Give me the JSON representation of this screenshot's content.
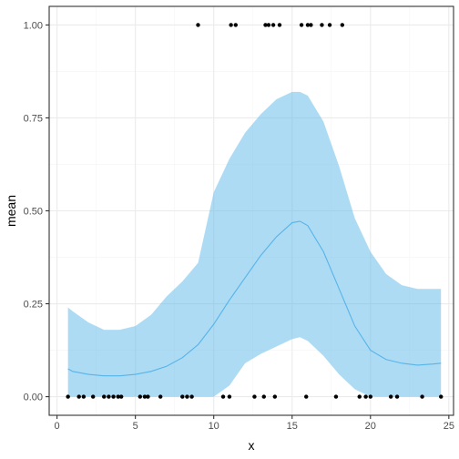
{
  "chart_data": {
    "type": "line",
    "title": "",
    "xlabel": "x",
    "ylabel": "mean",
    "xlim": [
      -0.5,
      25.3
    ],
    "ylim": [
      -0.05,
      1.05
    ],
    "x_ticks": [
      0,
      5,
      10,
      15,
      20,
      25
    ],
    "x_tick_labels": [
      "0",
      "5",
      "10",
      "15",
      "20",
      "25"
    ],
    "y_ticks": [
      0,
      0.25,
      0.5,
      0.75,
      1
    ],
    "y_tick_labels": [
      "0.00",
      "0.25",
      "0.50",
      "0.75",
      "1.00"
    ],
    "grid": true,
    "legend": "none",
    "colors": {
      "line": "#56b4e9",
      "ribbon": "#56b4e9",
      "points": "#000000",
      "grid_major": "#ebebeb",
      "grid_minor": "#f5f5f5",
      "panel_border": "#333333"
    },
    "series": [
      {
        "kind": "smooth-mean",
        "x": [
          0.7,
          1,
          2,
          3,
          4,
          5,
          6,
          7,
          8,
          9,
          10,
          11,
          12,
          13,
          14,
          15,
          15.5,
          16,
          17,
          18,
          19,
          20,
          21,
          22,
          23,
          24,
          24.5
        ],
        "y": [
          0.075,
          0.068,
          0.06,
          0.056,
          0.056,
          0.06,
          0.068,
          0.082,
          0.105,
          0.14,
          0.195,
          0.26,
          0.32,
          0.38,
          0.43,
          0.468,
          0.472,
          0.46,
          0.39,
          0.29,
          0.19,
          0.125,
          0.1,
          0.09,
          0.085,
          0.088,
          0.09
        ],
        "lower": [
          0.0,
          0.0,
          0.0,
          0.0,
          0.0,
          0.0,
          0.0,
          0.0,
          0.0,
          0.0,
          0.0,
          0.03,
          0.09,
          0.115,
          0.135,
          0.155,
          0.16,
          0.15,
          0.11,
          0.06,
          0.02,
          0.0,
          0.0,
          0.0,
          0.0,
          0.0,
          0.0
        ],
        "upper": [
          0.24,
          0.23,
          0.2,
          0.18,
          0.18,
          0.19,
          0.22,
          0.27,
          0.31,
          0.36,
          0.55,
          0.64,
          0.71,
          0.76,
          0.8,
          0.82,
          0.82,
          0.81,
          0.74,
          0.62,
          0.48,
          0.39,
          0.33,
          0.3,
          0.29,
          0.29,
          0.29
        ]
      },
      {
        "kind": "points",
        "x": [
          0.7,
          1.4,
          1.7,
          2.3,
          3.0,
          3.3,
          3.6,
          3.9,
          4.1,
          5.3,
          5.6,
          5.8,
          6.6,
          8.0,
          8.3,
          8.6,
          10.6,
          11.0,
          12.6,
          13.2,
          13.9,
          15.9,
          17.8,
          19.3,
          19.7,
          20.0,
          21.3,
          21.7,
          23.3,
          24.5,
          9.0,
          11.1,
          11.4,
          13.3,
          13.5,
          13.8,
          14.2,
          15.6,
          16.0,
          16.2,
          16.9,
          17.4,
          18.2
        ],
        "y": [
          0,
          0,
          0,
          0,
          0,
          0,
          0,
          0,
          0,
          0,
          0,
          0,
          0,
          0,
          0,
          0,
          0,
          0,
          0,
          0,
          0,
          0,
          0,
          0,
          0,
          0,
          0,
          0,
          0,
          0,
          1,
          1,
          1,
          1,
          1,
          1,
          1,
          1,
          1,
          1,
          1,
          1,
          1
        ]
      }
    ]
  }
}
